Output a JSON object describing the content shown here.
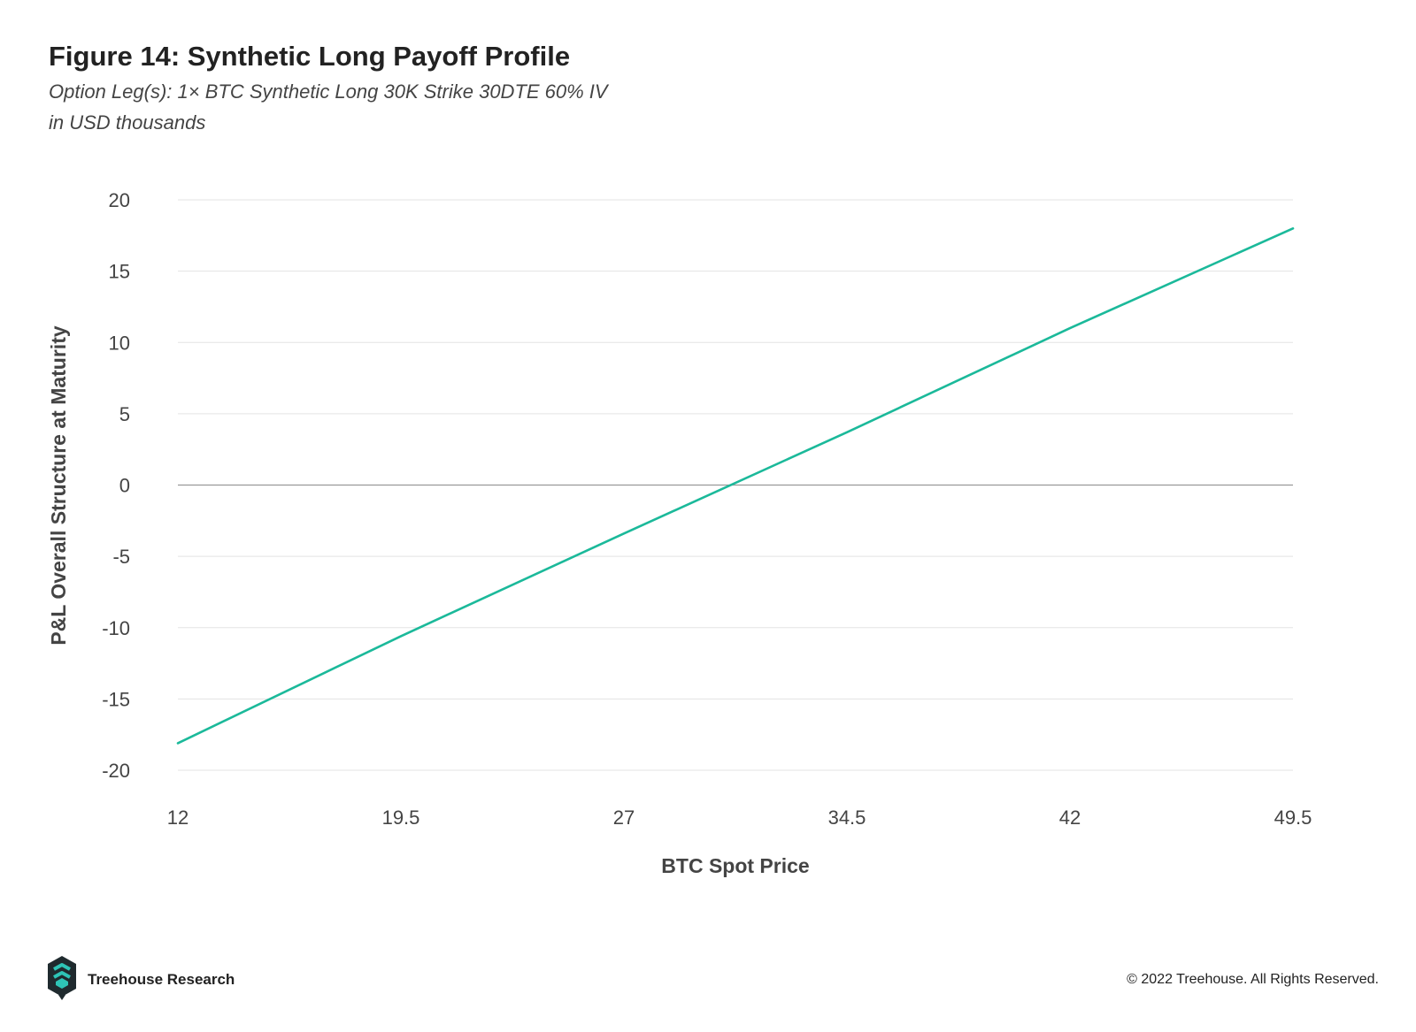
{
  "title": "Figure 14: Synthetic Long Payoff Profile",
  "subtitle_line1": "Option Leg(s): 1× BTC Synthetic Long 30K Strike 30DTE 60% IV",
  "subtitle_line2": "in USD thousands",
  "footer": {
    "brand": "Treehouse Research",
    "copyright": "© 2022 Treehouse. All Rights Reserved."
  },
  "colors": {
    "line": "#1bb99a",
    "grid": "#e3e3e3",
    "zero_line": "#999999",
    "logo_dark": "#1f2a2e",
    "logo_teal": "#2ec4b6"
  },
  "chart_data": {
    "type": "line",
    "xlabel": "BTC Spot Price",
    "ylabel": "P&L Overall Structure at Maturity",
    "x_ticks": [
      "12",
      "19.5",
      "27",
      "34.5",
      "42",
      "49.5"
    ],
    "y_ticks": [
      "20",
      "15",
      "10",
      "5",
      "0",
      "-5",
      "-10",
      "-15",
      "-20"
    ],
    "xlim": [
      12,
      49.5
    ],
    "ylim": [
      -20,
      20
    ],
    "grid": true,
    "series": [
      {
        "x": [
          12,
          19.5,
          27,
          34.5,
          42,
          49.5
        ],
        "values": [
          -18.1,
          -10.6,
          -3.4,
          3.7,
          11.0,
          18.0
        ]
      }
    ]
  }
}
